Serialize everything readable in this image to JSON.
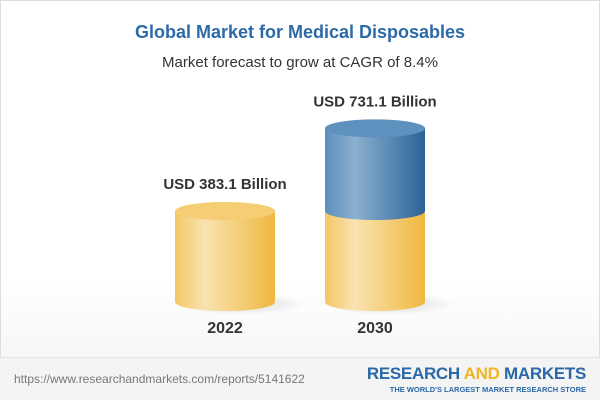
{
  "title": "Global Market for Medical Disposables",
  "subtitle": "Market forecast to grow at CAGR of 8.4%",
  "chart_data": {
    "type": "bar",
    "style": "3d-cylinder",
    "categories": [
      "2022",
      "2030"
    ],
    "values": [
      383.1,
      731.1
    ],
    "data_labels": [
      "USD 383.1 Billion",
      "USD 731.1 Billion"
    ],
    "unit": "USD Billion",
    "colors": {
      "base": "#f2c55c",
      "growth": "#3f7fb5"
    },
    "grid": false
  },
  "footer": {
    "url": "https://www.researchandmarkets.com/reports/5141622",
    "logo_part1": "RESEARCH ",
    "logo_part2": "AND",
    "logo_part3": " MARKETS",
    "tagline": "THE WORLD'S LARGEST MARKET RESEARCH STORE"
  }
}
